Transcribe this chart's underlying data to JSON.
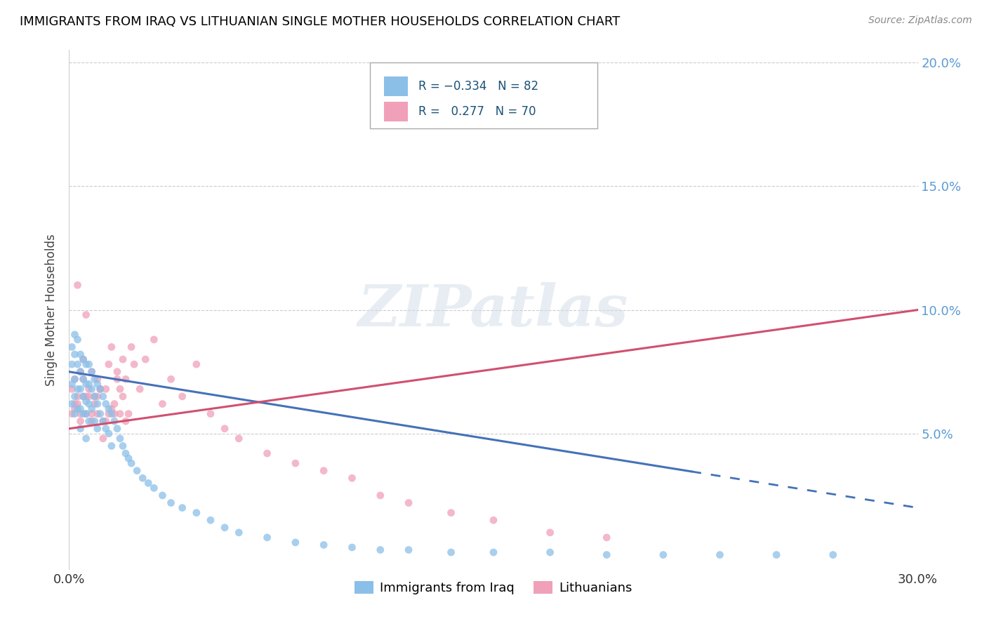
{
  "title": "IMMIGRANTS FROM IRAQ VS LITHUANIAN SINGLE MOTHER HOUSEHOLDS CORRELATION CHART",
  "source": "Source: ZipAtlas.com",
  "ylabel": "Single Mother Households",
  "xmin": 0.0,
  "xmax": 0.3,
  "ymin": -0.005,
  "ymax": 0.205,
  "yticks": [
    0.05,
    0.1,
    0.15,
    0.2
  ],
  "ytick_labels": [
    "5.0%",
    "10.0%",
    "15.0%",
    "20.0%"
  ],
  "watermark_text": "ZIPatlas",
  "series1_color": "#8bbfe8",
  "series2_color": "#f0a0b8",
  "series1_label": "Immigrants from Iraq",
  "series2_label": "Lithuanians",
  "trend1_color": "#4472b8",
  "trend2_color": "#d05070",
  "trend1_y0": 0.075,
  "trend1_y1": 0.02,
  "trend1_solid_end": 0.22,
  "trend2_y0": 0.052,
  "trend2_y1": 0.1,
  "iraq_x": [
    0.001,
    0.001,
    0.001,
    0.001,
    0.002,
    0.002,
    0.002,
    0.002,
    0.002,
    0.003,
    0.003,
    0.003,
    0.003,
    0.004,
    0.004,
    0.004,
    0.004,
    0.004,
    0.005,
    0.005,
    0.005,
    0.005,
    0.006,
    0.006,
    0.006,
    0.006,
    0.006,
    0.007,
    0.007,
    0.007,
    0.007,
    0.008,
    0.008,
    0.008,
    0.009,
    0.009,
    0.009,
    0.01,
    0.01,
    0.01,
    0.011,
    0.011,
    0.012,
    0.012,
    0.013,
    0.013,
    0.014,
    0.014,
    0.015,
    0.015,
    0.016,
    0.017,
    0.018,
    0.019,
    0.02,
    0.021,
    0.022,
    0.024,
    0.026,
    0.028,
    0.03,
    0.033,
    0.036,
    0.04,
    0.045,
    0.05,
    0.055,
    0.06,
    0.07,
    0.08,
    0.09,
    0.1,
    0.11,
    0.12,
    0.135,
    0.15,
    0.17,
    0.19,
    0.21,
    0.23,
    0.25,
    0.27
  ],
  "iraq_y": [
    0.085,
    0.078,
    0.07,
    0.062,
    0.09,
    0.082,
    0.072,
    0.065,
    0.058,
    0.088,
    0.078,
    0.068,
    0.06,
    0.082,
    0.075,
    0.068,
    0.06,
    0.052,
    0.08,
    0.072,
    0.065,
    0.058,
    0.078,
    0.07,
    0.063,
    0.058,
    0.048,
    0.078,
    0.07,
    0.062,
    0.055,
    0.075,
    0.068,
    0.06,
    0.072,
    0.065,
    0.055,
    0.07,
    0.062,
    0.052,
    0.068,
    0.058,
    0.065,
    0.055,
    0.062,
    0.052,
    0.06,
    0.05,
    0.058,
    0.045,
    0.055,
    0.052,
    0.048,
    0.045,
    0.042,
    0.04,
    0.038,
    0.035,
    0.032,
    0.03,
    0.028,
    0.025,
    0.022,
    0.02,
    0.018,
    0.015,
    0.012,
    0.01,
    0.008,
    0.006,
    0.005,
    0.004,
    0.003,
    0.003,
    0.002,
    0.002,
    0.002,
    0.001,
    0.001,
    0.001,
    0.001,
    0.001
  ],
  "lith_x": [
    0.001,
    0.001,
    0.002,
    0.002,
    0.003,
    0.003,
    0.004,
    0.004,
    0.005,
    0.005,
    0.006,
    0.006,
    0.007,
    0.008,
    0.008,
    0.009,
    0.01,
    0.01,
    0.011,
    0.012,
    0.013,
    0.014,
    0.015,
    0.016,
    0.017,
    0.018,
    0.019,
    0.02,
    0.022,
    0.023,
    0.025,
    0.027,
    0.03,
    0.033,
    0.036,
    0.04,
    0.045,
    0.05,
    0.055,
    0.06,
    0.07,
    0.08,
    0.09,
    0.1,
    0.11,
    0.12,
    0.135,
    0.15,
    0.17,
    0.19,
    0.003,
    0.005,
    0.007,
    0.009,
    0.011,
    0.013,
    0.015,
    0.017,
    0.019,
    0.021,
    0.002,
    0.004,
    0.006,
    0.008,
    0.01,
    0.012,
    0.014,
    0.016,
    0.018,
    0.02
  ],
  "lith_y": [
    0.068,
    0.058,
    0.072,
    0.06,
    0.11,
    0.062,
    0.075,
    0.058,
    0.08,
    0.065,
    0.058,
    0.098,
    0.068,
    0.055,
    0.075,
    0.065,
    0.058,
    0.072,
    0.068,
    0.055,
    0.068,
    0.078,
    0.085,
    0.058,
    0.075,
    0.068,
    0.08,
    0.072,
    0.085,
    0.078,
    0.068,
    0.08,
    0.088,
    0.062,
    0.072,
    0.065,
    0.078,
    0.058,
    0.052,
    0.048,
    0.042,
    0.038,
    0.035,
    0.032,
    0.025,
    0.022,
    0.018,
    0.015,
    0.01,
    0.008,
    0.065,
    0.072,
    0.065,
    0.062,
    0.068,
    0.055,
    0.06,
    0.072,
    0.065,
    0.058,
    0.062,
    0.055,
    0.065,
    0.058,
    0.065,
    0.048,
    0.058,
    0.062,
    0.058,
    0.055
  ]
}
